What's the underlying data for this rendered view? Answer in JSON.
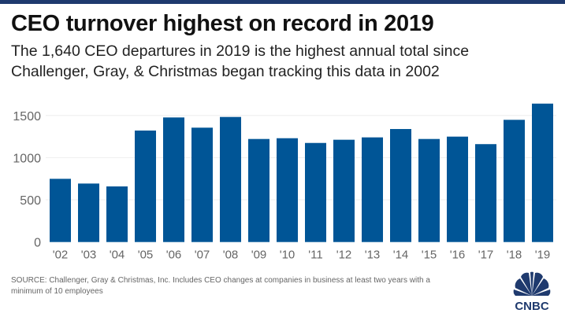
{
  "header": {
    "title": "CEO turnover highest on record in 2019",
    "subtitle_line1": "The 1,640 CEO departures in 2019 is the highest annual total since",
    "subtitle_line2": "Challenger, Gray, & Christmas began tracking this data in 2002"
  },
  "footer": {
    "source": "SOURCE: Challenger, Gray & Christmas, Inc. Includes CEO changes at companies in business at least two years with a minimum of 10 employees",
    "logo_text": "CNBC"
  },
  "colors": {
    "bar": "#005596",
    "topbar": "#1f3a6e",
    "grid": "#eeeeee"
  },
  "chart_data": {
    "type": "bar",
    "title": "CEO turnover highest on record in 2019",
    "xlabel": "",
    "ylabel": "",
    "categories": [
      "'02",
      "'03",
      "'04",
      "'05",
      "'06",
      "'07",
      "'08",
      "'09",
      "'10",
      "'11",
      "'12",
      "'13",
      "'14",
      "'15",
      "'16",
      "'17",
      "'18",
      "'19"
    ],
    "values": [
      749,
      693,
      659,
      1321,
      1476,
      1355,
      1482,
      1221,
      1230,
      1174,
      1212,
      1240,
      1339,
      1221,
      1249,
      1160,
      1448,
      1640
    ],
    "ylim": [
      0,
      1700
    ],
    "yticks": [
      0,
      500,
      1000,
      1500
    ],
    "ytick_labels": [
      "0",
      "500",
      "1000",
      "1500"
    ],
    "grid": true,
    "legend": "none"
  }
}
